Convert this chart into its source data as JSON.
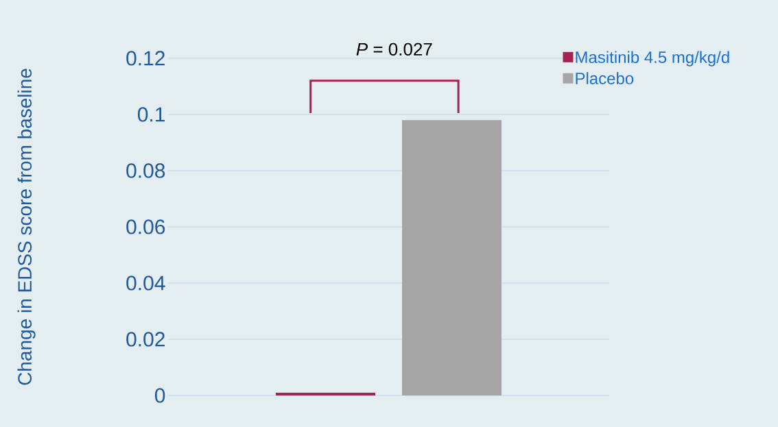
{
  "chart_data": {
    "type": "bar",
    "ylabel": "Change in EDSS score from baseline",
    "categories": [
      null
    ],
    "series": [
      {
        "name": "Masitinib 4.5 mg/kg/d",
        "color": "#a4244f",
        "values": [
          0.001
        ]
      },
      {
        "name": "Placebo",
        "color": "#a5a5a5",
        "values": [
          0.098
        ]
      }
    ],
    "ylim": [
      0,
      0.12
    ],
    "yticks": [
      0,
      {
        "value": 0.02,
        "label": "0.02"
      },
      {
        "value": 0.04,
        "label": "0.04"
      },
      {
        "value": 0.06,
        "label": "0.06"
      },
      {
        "value": 0.08,
        "label": "0.08"
      },
      {
        "value": 0.1,
        "label": "0.1"
      },
      {
        "value": 0.12,
        "label": "0.12"
      }
    ],
    "grid": "y",
    "legend": "top right",
    "annotations": [
      "*P* = 0.027"
    ]
  }
}
